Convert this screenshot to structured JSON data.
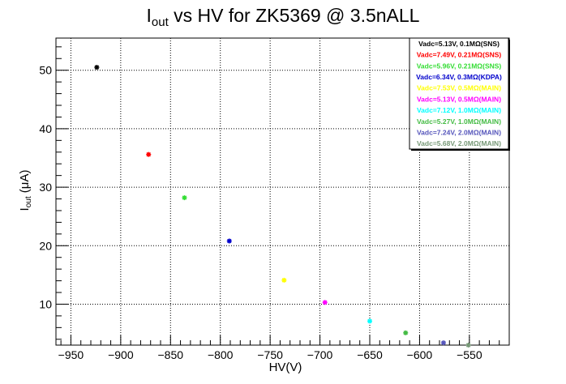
{
  "chart_data": {
    "type": "scatter",
    "title_main": "I",
    "title_sub": "out",
    "title_rest": " vs HV for ZK5369 @ 3.5nALL",
    "xlabel": "HV(V)",
    "ylabel_main": "I",
    "ylabel_sub": "out",
    "ylabel_rest": " (μA)",
    "xlim": [
      -965,
      -510
    ],
    "ylim": [
      3,
      55.5
    ],
    "xticks": [
      -950,
      -900,
      -850,
      -800,
      -750,
      -700,
      -650,
      -600,
      -550
    ],
    "xtick_labels": [
      "−950",
      "−900",
      "−850",
      "−800",
      "−750",
      "−700",
      "−650",
      "−600",
      "−550"
    ],
    "yticks": [
      10,
      20,
      30,
      40,
      50
    ],
    "ytick_labels": [
      "10",
      "20",
      "30",
      "40",
      "50"
    ],
    "grid": true,
    "legend_position": "top-right",
    "series": [
      {
        "name": "Vadc=5.13V, 0.1MΩ(SNS)",
        "color": "#000000",
        "x": [
          -924
        ],
        "y": [
          50.5
        ]
      },
      {
        "name": "Vadc=7.49V, 0.21MΩ(SNS)",
        "color": "#ff0000",
        "x": [
          -872
        ],
        "y": [
          35.6
        ]
      },
      {
        "name": "Vadc=5.96V, 0.21MΩ(SNS)",
        "color": "#33dd33",
        "x": [
          -836
        ],
        "y": [
          28.2
        ]
      },
      {
        "name": "Vadc=6.34V, 0.3MΩ(KDPA)",
        "color": "#0000cc",
        "x": [
          -791
        ],
        "y": [
          20.8
        ]
      },
      {
        "name": "Vadc=7.53V, 0.5MΩ(MAIN)",
        "color": "#ffff00",
        "x": [
          -736
        ],
        "y": [
          14.1
        ]
      },
      {
        "name": "Vadc=5.13V, 0.5MΩ(MAIN)",
        "color": "#ff00ff",
        "x": [
          -695
        ],
        "y": [
          10.3
        ]
      },
      {
        "name": "Vadc=7.12V, 1.0MΩ(MAIN)",
        "color": "#00ffff",
        "x": [
          -650
        ],
        "y": [
          7.1
        ]
      },
      {
        "name": "Vadc=5.27V, 1.0MΩ(MAIN)",
        "color": "#44bb44",
        "x": [
          -614
        ],
        "y": [
          5.1
        ]
      },
      {
        "name": "Vadc=7.24V, 2.0MΩ(MAIN)",
        "color": "#5555bb",
        "x": [
          -576
        ],
        "y": [
          3.4
        ]
      },
      {
        "name": "Vadc=5.68V, 2.0MΩ(MAIN)",
        "color": "#779977",
        "x": [
          -551
        ],
        "y": [
          3.0
        ]
      }
    ]
  }
}
